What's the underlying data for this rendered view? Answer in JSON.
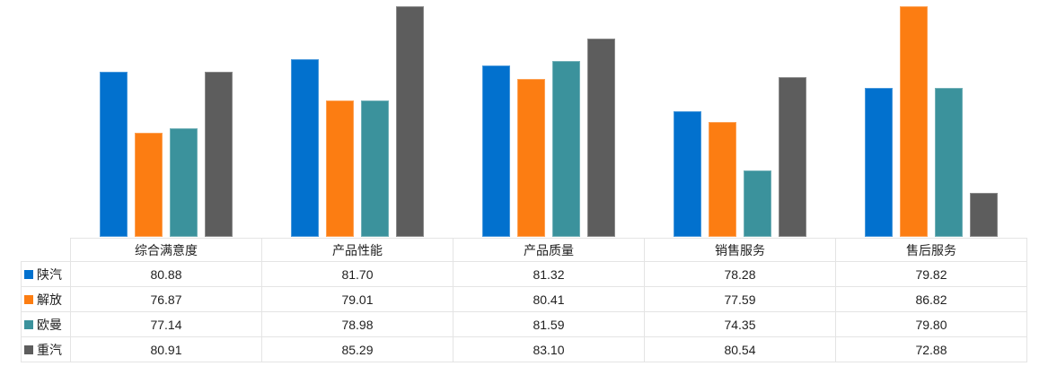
{
  "chart_data": {
    "type": "bar",
    "title": "",
    "xlabel": "",
    "ylabel": "",
    "categories": [
      "综合满意度",
      "产品性能",
      "产品质量",
      "销售服务",
      "售后服务"
    ],
    "series": [
      {
        "name": "陕汽",
        "color": "#0271CE",
        "values": [
          80.88,
          81.7,
          81.32,
          78.28,
          79.82
        ]
      },
      {
        "name": "解放",
        "color": "#FC7D12",
        "values": [
          76.87,
          79.01,
          80.41,
          77.59,
          86.82
        ]
      },
      {
        "name": "欧曼",
        "color": "#3B929C",
        "values": [
          77.14,
          78.98,
          81.59,
          74.35,
          79.8
        ]
      },
      {
        "name": "重汽",
        "color": "#5D5D5D",
        "values": [
          80.91,
          85.29,
          83.1,
          80.54,
          72.88
        ]
      }
    ],
    "ylim": [
      70,
      85.2
    ],
    "grid": false,
    "legend_position": "data-table-left",
    "data_table_shown": true,
    "value_format": "2-decimals",
    "table_border_color": "#e4e4e4",
    "text_color": "#1f1f1f"
  }
}
